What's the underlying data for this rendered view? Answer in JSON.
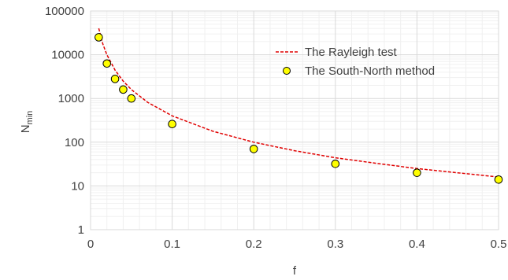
{
  "chart_data": {
    "type": "scatter",
    "title": "",
    "xlabel": "f",
    "ylabel_main": "N",
    "ylabel_sub": "min",
    "xlim": [
      0,
      0.5
    ],
    "ylim": [
      1,
      100000
    ],
    "y_scale": "log",
    "x_ticks": [
      0,
      0.1,
      0.2,
      0.3,
      0.4,
      0.5
    ],
    "x_tick_labels": [
      "0",
      "0.1",
      "0.2",
      "0.3",
      "0.4",
      "0.5"
    ],
    "y_ticks": [
      1,
      10,
      100,
      1000,
      10000,
      100000
    ],
    "y_tick_labels": [
      "1",
      "10",
      "100",
      "1000",
      "10000",
      "100000"
    ],
    "grid": true,
    "legend_position": "top-right",
    "series": [
      {
        "name": "The Rayleigh test",
        "style": "dashed-line",
        "color": "#e00000",
        "x": [
          0.01,
          0.015,
          0.02,
          0.03,
          0.04,
          0.05,
          0.07,
          0.1,
          0.15,
          0.2,
          0.25,
          0.3,
          0.35,
          0.4,
          0.45,
          0.5
        ],
        "y": [
          40000,
          17800,
          10000,
          4440,
          2500,
          1600,
          816,
          400,
          178,
          100,
          64,
          44,
          33,
          25,
          20,
          16
        ]
      },
      {
        "name": "The South-North method",
        "style": "markers",
        "color": "#ffff00",
        "x": [
          0.01,
          0.02,
          0.03,
          0.04,
          0.05,
          0.1,
          0.2,
          0.3,
          0.4,
          0.5
        ],
        "y": [
          25000,
          6300,
          2800,
          1600,
          1000,
          260,
          70,
          32,
          20,
          14
        ]
      }
    ]
  }
}
